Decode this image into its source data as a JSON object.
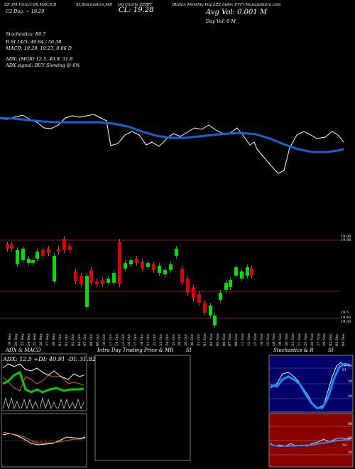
{
  "header": {
    "line1": "ZZ 3M Intra:1DX,MACD,B",
    "line1b": "SI,Stochastics,MR",
    "line1c": "(A) Charts ZZRIT",
    "line1d": "(Rivian Monthly Pay 5ZZ Index ETF) MunafaSutra.com",
    "last_label": "(Last)",
    "close_big": "CL: 19.28",
    "day_range": "C2  Day: ~ 19.29",
    "avg_vol": "Avg Vol: 0.001 M",
    "day_vol": "Day Vol: 0   M"
  },
  "stats": {
    "stochastics": "Stochastics: 80.7",
    "si": "R                    SI 14/5: 49.84 / 56.38",
    "macd": "MACD: 19.29, 19.23, 0.06   D",
    "adx": "ADX:                              (MGR) 12.5, 40.9, 31.8",
    "adx_signal": "ADX  signal:                               BUY Slowing @ 6%"
  },
  "price_axis": {
    "top1": "19.88",
    "top2": "19.86",
    "bottom1": "19.5",
    "bottom2": "19.43",
    "bottom3": "19.30"
  },
  "dates": [
    "19 Sep",
    "20 Sep",
    "23 Sep",
    "24 Sep",
    "25 Sep",
    "26 Sep",
    "27 Sep",
    "30 Sep",
    "01 Oct",
    "02 Oct",
    "03 Oct",
    "04 Oct",
    "07 Oct",
    "08 Oct",
    "09 Oct",
    "10 Oct",
    "11 Oct",
    "14 Oct",
    "15 Oct",
    "16 Oct",
    "17 Oct",
    "18 Oct",
    "21 Oct",
    "22 Oct",
    "23 Oct",
    "24 Oct",
    "25 Oct",
    "28 Oct",
    "29 Oct",
    "30 Oct",
    "31 Oct",
    "01 Nov",
    "04 Nov",
    "05 Nov",
    "06 Nov",
    "07 Nov",
    "08 Nov",
    "11 Nov",
    "12 Nov",
    "13 Nov",
    "14 Nov",
    "15 Nov",
    "18 Nov",
    "19 Nov",
    "20 Nov",
    "21 Nov",
    "22 Nov",
    "25 Nov",
    "26 Nov",
    "27 Nov",
    "29 Nov",
    "02 Dec",
    "03 Dec",
    "04 Dec"
  ],
  "panels": {
    "adx_title": "ADX  & MACD",
    "adx_values": "ADX: 12.5  +DI: 40.91  -DI: 31.82",
    "intra_title": "Intra  Day Trading Price  & MR",
    "intra_si": "SI",
    "stoch_title": "Stochastics & R",
    "stoch_si": "SI",
    "stoch_levels": [
      "80",
      "50",
      "20"
    ],
    "si_levels": [
      "80",
      "50",
      "20"
    ],
    "stoch_val": "81",
    "si_val": "50"
  },
  "colors": {
    "bull": "#00dd00",
    "bear": "#dd0000",
    "ma": "#1a5fd8",
    "price_line": "#ffffff",
    "si_bg": "#8b0000",
    "stoch_bg": "#00006b"
  }
}
